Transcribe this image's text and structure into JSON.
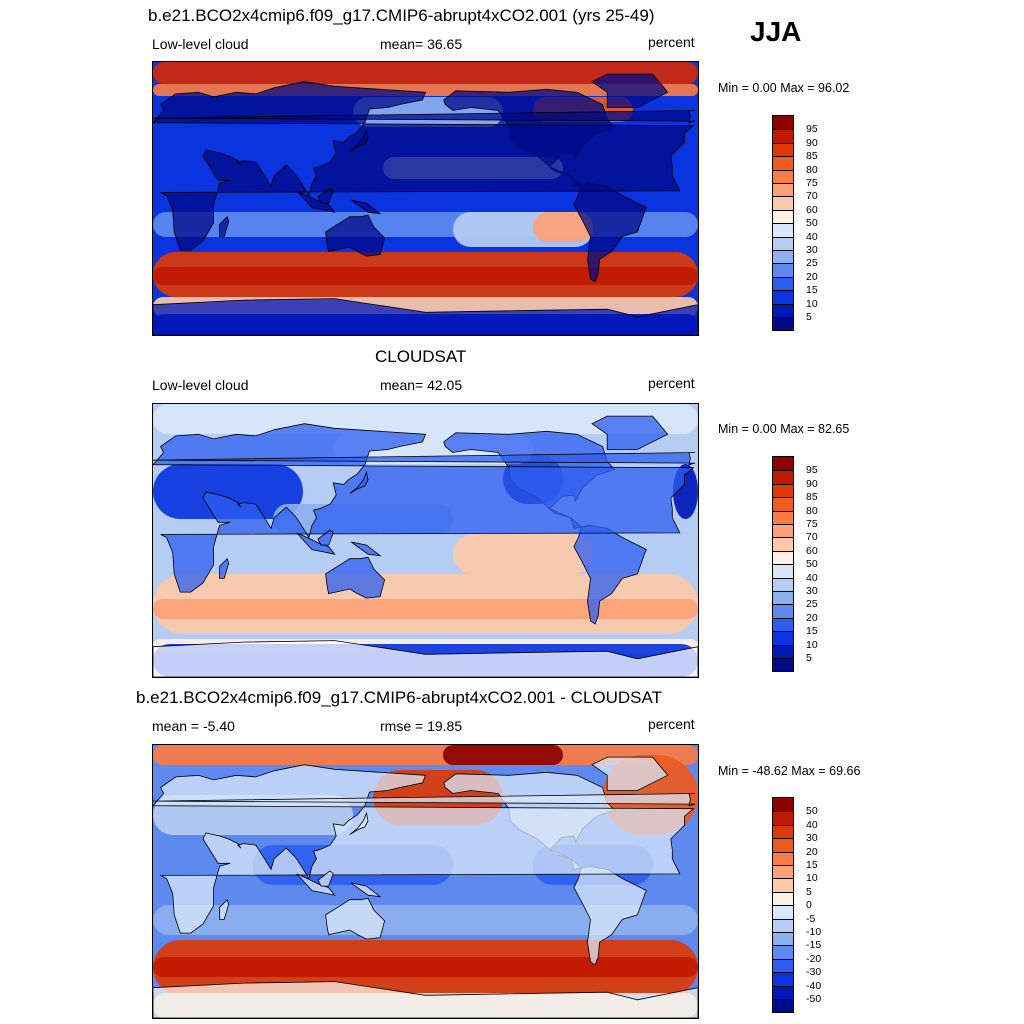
{
  "season": "JJA",
  "panels": [
    {
      "title": "b.e21.BCO2x4cmip6.f09_g17.CMIP6-abrupt4xCO2.001 (yrs 25-49)",
      "left_label": "Low-level cloud",
      "center_label": "mean=  36.65",
      "units": "percent",
      "minmax": "Min =   0.00 Max =  96.02",
      "type": "model"
    },
    {
      "title": "CLOUDSAT",
      "left_label": "Low-level cloud",
      "center_label": "mean=  42.05",
      "units": "percent",
      "minmax": "Min =   0.00 Max =  82.65",
      "type": "obs"
    },
    {
      "title": "b.e21.BCO2x4cmip6.f09_g17.CMIP6-abrupt4xCO2.001 - CLOUDSAT",
      "left_label": "mean =  -5.40",
      "center_label": "rmse =  19.85",
      "units": "percent",
      "minmax": "Min = -48.62 Max =  69.66",
      "type": "diff"
    }
  ],
  "chart_data": [
    {
      "type": "heatmap",
      "title": "b.e21.BCO2x4cmip6.f09_g17.CMIP6-abrupt4xCO2.001 (yrs 25-49)",
      "variable": "Low-level cloud",
      "units": "percent",
      "mean": 36.65,
      "min": 0.0,
      "max": 96.02,
      "colorbar_levels": [
        95,
        90,
        85,
        80,
        75,
        70,
        60,
        50,
        40,
        30,
        25,
        20,
        15,
        10,
        5
      ],
      "colorbar_colors": [
        "#8b0000",
        "#c01a00",
        "#dc3a08",
        "#ef5a1e",
        "#fa7b45",
        "#fca276",
        "#fdc9a8",
        "#fdf0e4",
        "#d9e7f8",
        "#b5cdf2",
        "#8db0ee",
        "#5e8af0",
        "#2e5ef0",
        "#0a34e0",
        "#0018b8",
        "#000a88"
      ]
    },
    {
      "type": "heatmap",
      "title": "CLOUDSAT",
      "variable": "Low-level cloud",
      "units": "percent",
      "mean": 42.05,
      "min": 0.0,
      "max": 82.65,
      "colorbar_levels": [
        95,
        90,
        85,
        80,
        75,
        70,
        60,
        50,
        40,
        30,
        25,
        20,
        15,
        10,
        5
      ],
      "colorbar_colors": [
        "#8b0000",
        "#c01a00",
        "#dc3a08",
        "#ef5a1e",
        "#fa7b45",
        "#fca276",
        "#fdc9a8",
        "#fdf0e4",
        "#d9e7f8",
        "#b5cdf2",
        "#8db0ee",
        "#5e8af0",
        "#2e5ef0",
        "#0a34e0",
        "#0018b8",
        "#000a88"
      ]
    },
    {
      "type": "heatmap",
      "title": "b.e21.BCO2x4cmip6.f09_g17.CMIP6-abrupt4xCO2.001 - CLOUDSAT",
      "units": "percent",
      "mean": -5.4,
      "rmse": 19.85,
      "min": -48.62,
      "max": 69.66,
      "colorbar_levels": [
        50,
        40,
        30,
        20,
        15,
        10,
        5,
        0,
        -5,
        -10,
        -15,
        -20,
        -30,
        -40,
        -50
      ],
      "colorbar_colors": [
        "#8b0000",
        "#c01a00",
        "#dc3a08",
        "#ef5a1e",
        "#fa7b45",
        "#fca276",
        "#fdc9a8",
        "#fdf0e4",
        "#d9e7f8",
        "#b5cdf2",
        "#8db0ee",
        "#5e8af0",
        "#2e5ef0",
        "#0a34e0",
        "#0018b8",
        "#000a88"
      ]
    }
  ]
}
